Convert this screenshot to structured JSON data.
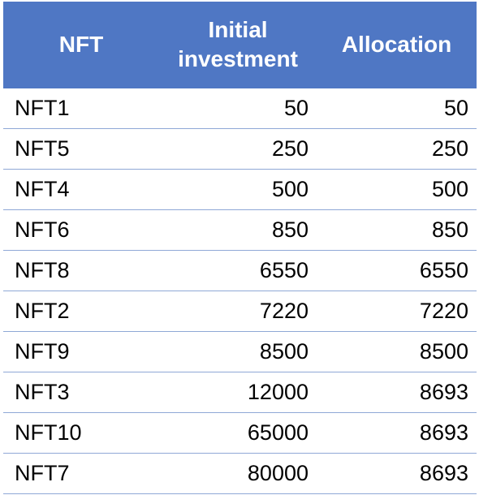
{
  "table": {
    "headers": [
      "NFT",
      "Initial investment",
      "Allocation"
    ],
    "rows": [
      [
        "NFT1",
        "50",
        "50"
      ],
      [
        "NFT5",
        "250",
        "250"
      ],
      [
        "NFT4",
        "500",
        "500"
      ],
      [
        "NFT6",
        "850",
        "850"
      ],
      [
        "NFT8",
        "6550",
        "6550"
      ],
      [
        "NFT2",
        "7220",
        "7220"
      ],
      [
        "NFT9",
        "8500",
        "8500"
      ],
      [
        "NFT3",
        "12000",
        "8693"
      ],
      [
        "NFT10",
        "65000",
        "8693"
      ],
      [
        "NFT7",
        "80000",
        "8693"
      ]
    ]
  },
  "colors": {
    "header_background": "#4f77c4",
    "header_text": "#ffffff",
    "row_divider": "#8fa8d6"
  }
}
